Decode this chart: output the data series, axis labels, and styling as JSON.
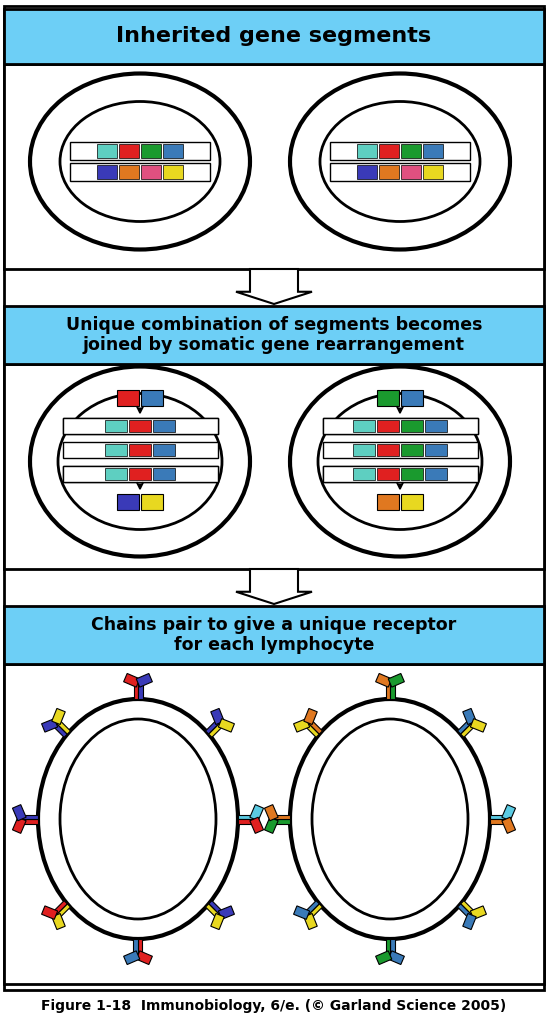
{
  "fig_caption": "Figure 1-18  Immunobiology, 6/e. (© Garland Science 2005)",
  "panel1_title": "Inherited gene segments",
  "panel2_title": "Unique combination of segments becomes\njoined by somatic gene rearrangement",
  "panel3_title": "Chains pair to give a unique receptor\nfor each lymphocyte",
  "header_bg": "#6dcff6",
  "panel1_top_colors": [
    "#5ecfc1",
    "#e02020",
    "#1a9a2e",
    "#3a7ab8"
  ],
  "panel1_bot_colors": [
    "#3a3ab8",
    "#e07820",
    "#e05080",
    "#e8d820"
  ],
  "panel2_left_top_segs": [
    "#e02020",
    "#3a7ab8"
  ],
  "panel2_left_mid_segs": [
    "#5ecfc1",
    "#e02020",
    "#3a7ab8"
  ],
  "panel2_left_bot_segs": [
    "#3a3ab8",
    "#e8d820"
  ],
  "panel2_right_top_segs": [
    "#1a9a2e",
    "#3a7ab8"
  ],
  "panel2_right_mid_segs": [
    "#5ecfc1",
    "#e02020",
    "#1a9a2e",
    "#3a7ab8"
  ],
  "panel2_right_bot_segs": [
    "#e07820",
    "#e8d820"
  ],
  "receptor1_colors": [
    [
      "#e02020",
      "#3a3ab8"
    ],
    [
      "#3a3ab8",
      "#e8d820"
    ],
    [
      "#e02020",
      "#3a3ab8"
    ],
    [
      "#e8d820",
      "#e02020"
    ],
    [
      "#e02020",
      "#3a7ab8"
    ],
    [
      "#3a3ab8",
      "#e8d820"
    ],
    [
      "#5bcbe3",
      "#e02020"
    ],
    [
      "#3a3ab8",
      "#e8d820"
    ]
  ],
  "receptor2_colors": [
    [
      "#e07820",
      "#1a9a2e"
    ],
    [
      "#e8d820",
      "#e07820"
    ],
    [
      "#1a9a2e",
      "#e07820"
    ],
    [
      "#e8d820",
      "#3a7ab8"
    ],
    [
      "#3a7ab8",
      "#1a9a2e"
    ],
    [
      "#e8d820",
      "#3a7ab8"
    ],
    [
      "#5bcbe3",
      "#e07820"
    ],
    [
      "#3a7ab8",
      "#e8d820"
    ]
  ]
}
